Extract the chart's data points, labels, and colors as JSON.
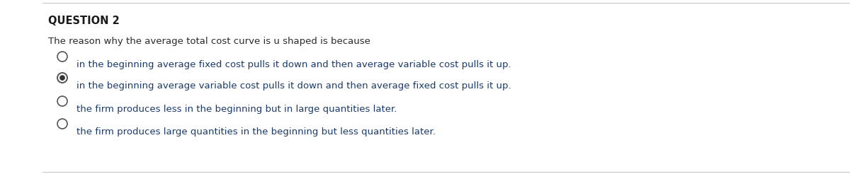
{
  "title": "QUESTION 2",
  "question": "The reason why the average total cost curve is u shaped is because",
  "options": [
    "in the beginning average fixed cost pulls it down and then average variable cost pulls it up.",
    "in the beginning average variable cost pulls it down and then average fixed cost pulls it up.",
    "the firm produces less in the beginning but in large quantities later.",
    "the firm produces large quantities in the beginning but less quantities later."
  ],
  "selected_index": 1,
  "background_color": "#ffffff",
  "border_color": "#c8c8c8",
  "title_color": "#1a1a1a",
  "option_text_color": "#1a3a6b",
  "question_text_color": "#2a2a2a",
  "radio_color": "#555555",
  "radio_selected_fill": "#333333",
  "title_fontsize": 10.5,
  "question_fontsize": 9.5,
  "option_fontsize": 9.5,
  "fig_width": 12.0,
  "fig_height": 2.46,
  "dpi": 100
}
